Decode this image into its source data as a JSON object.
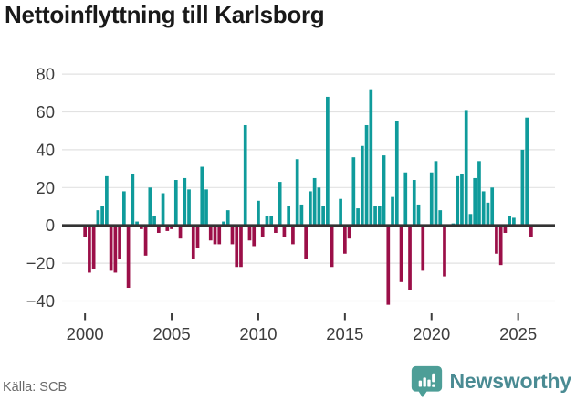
{
  "title": "Nettoinflyttning till Karlsborg",
  "footer": {
    "source_label": "Källa: SCB"
  },
  "branding": {
    "name": "Newsworthy",
    "icon": "bar-chart-speech-bubble-icon"
  },
  "colors": {
    "positive_bar": "#0f9b9b",
    "negative_bar": "#9b0f48",
    "gridline": "#e2e2e2",
    "zero_line": "#333333",
    "axis_text": "#3d3d3d",
    "title_text": "#191919",
    "source_text": "#6b6b6b",
    "brand_text": "#4a8b93",
    "brand_icon": "#4d9e97"
  },
  "chart_data": {
    "type": "bar",
    "title": "Nettoinflyttning till Karlsborg",
    "xlabel": "",
    "ylabel": "",
    "frequency": "quarterly",
    "start_period": "2000-Q1",
    "end_period": "2025-Q4",
    "values": [
      -6,
      -25,
      -23,
      8,
      10,
      26,
      -24,
      -25,
      -18,
      18,
      -33,
      27,
      2,
      -2,
      -16,
      20,
      5,
      -4,
      17,
      -3,
      -2,
      24,
      -7,
      25,
      19,
      -18,
      -12,
      31,
      19,
      -8,
      -10,
      -10,
      2,
      8,
      -10,
      -22,
      -22,
      53,
      -8,
      -11,
      13,
      -6,
      5,
      5,
      -4,
      23,
      -6,
      10,
      -10,
      35,
      11,
      -18,
      18,
      25,
      20,
      10,
      68,
      -22,
      0,
      14,
      -15,
      -7,
      36,
      9,
      42,
      53,
      72,
      10,
      10,
      37,
      -42,
      15,
      55,
      -30,
      28,
      -34,
      24,
      11,
      -24,
      0,
      28,
      34,
      8,
      -27,
      0,
      1,
      26,
      27,
      61,
      6,
      25,
      34,
      18,
      12,
      20,
      -15,
      -21,
      -4,
      5,
      4,
      0,
      40,
      57,
      -6
    ],
    "x_tick_years": [
      2000,
      2005,
      2010,
      2015,
      2020,
      2025
    ],
    "y_ticks": [
      80,
      60,
      40,
      20,
      0,
      -20,
      -40
    ],
    "ylim": [
      -46,
      86
    ],
    "grid": true,
    "legend": "none",
    "positive_color": "#0f9b9b",
    "negative_color": "#9b0f48"
  }
}
